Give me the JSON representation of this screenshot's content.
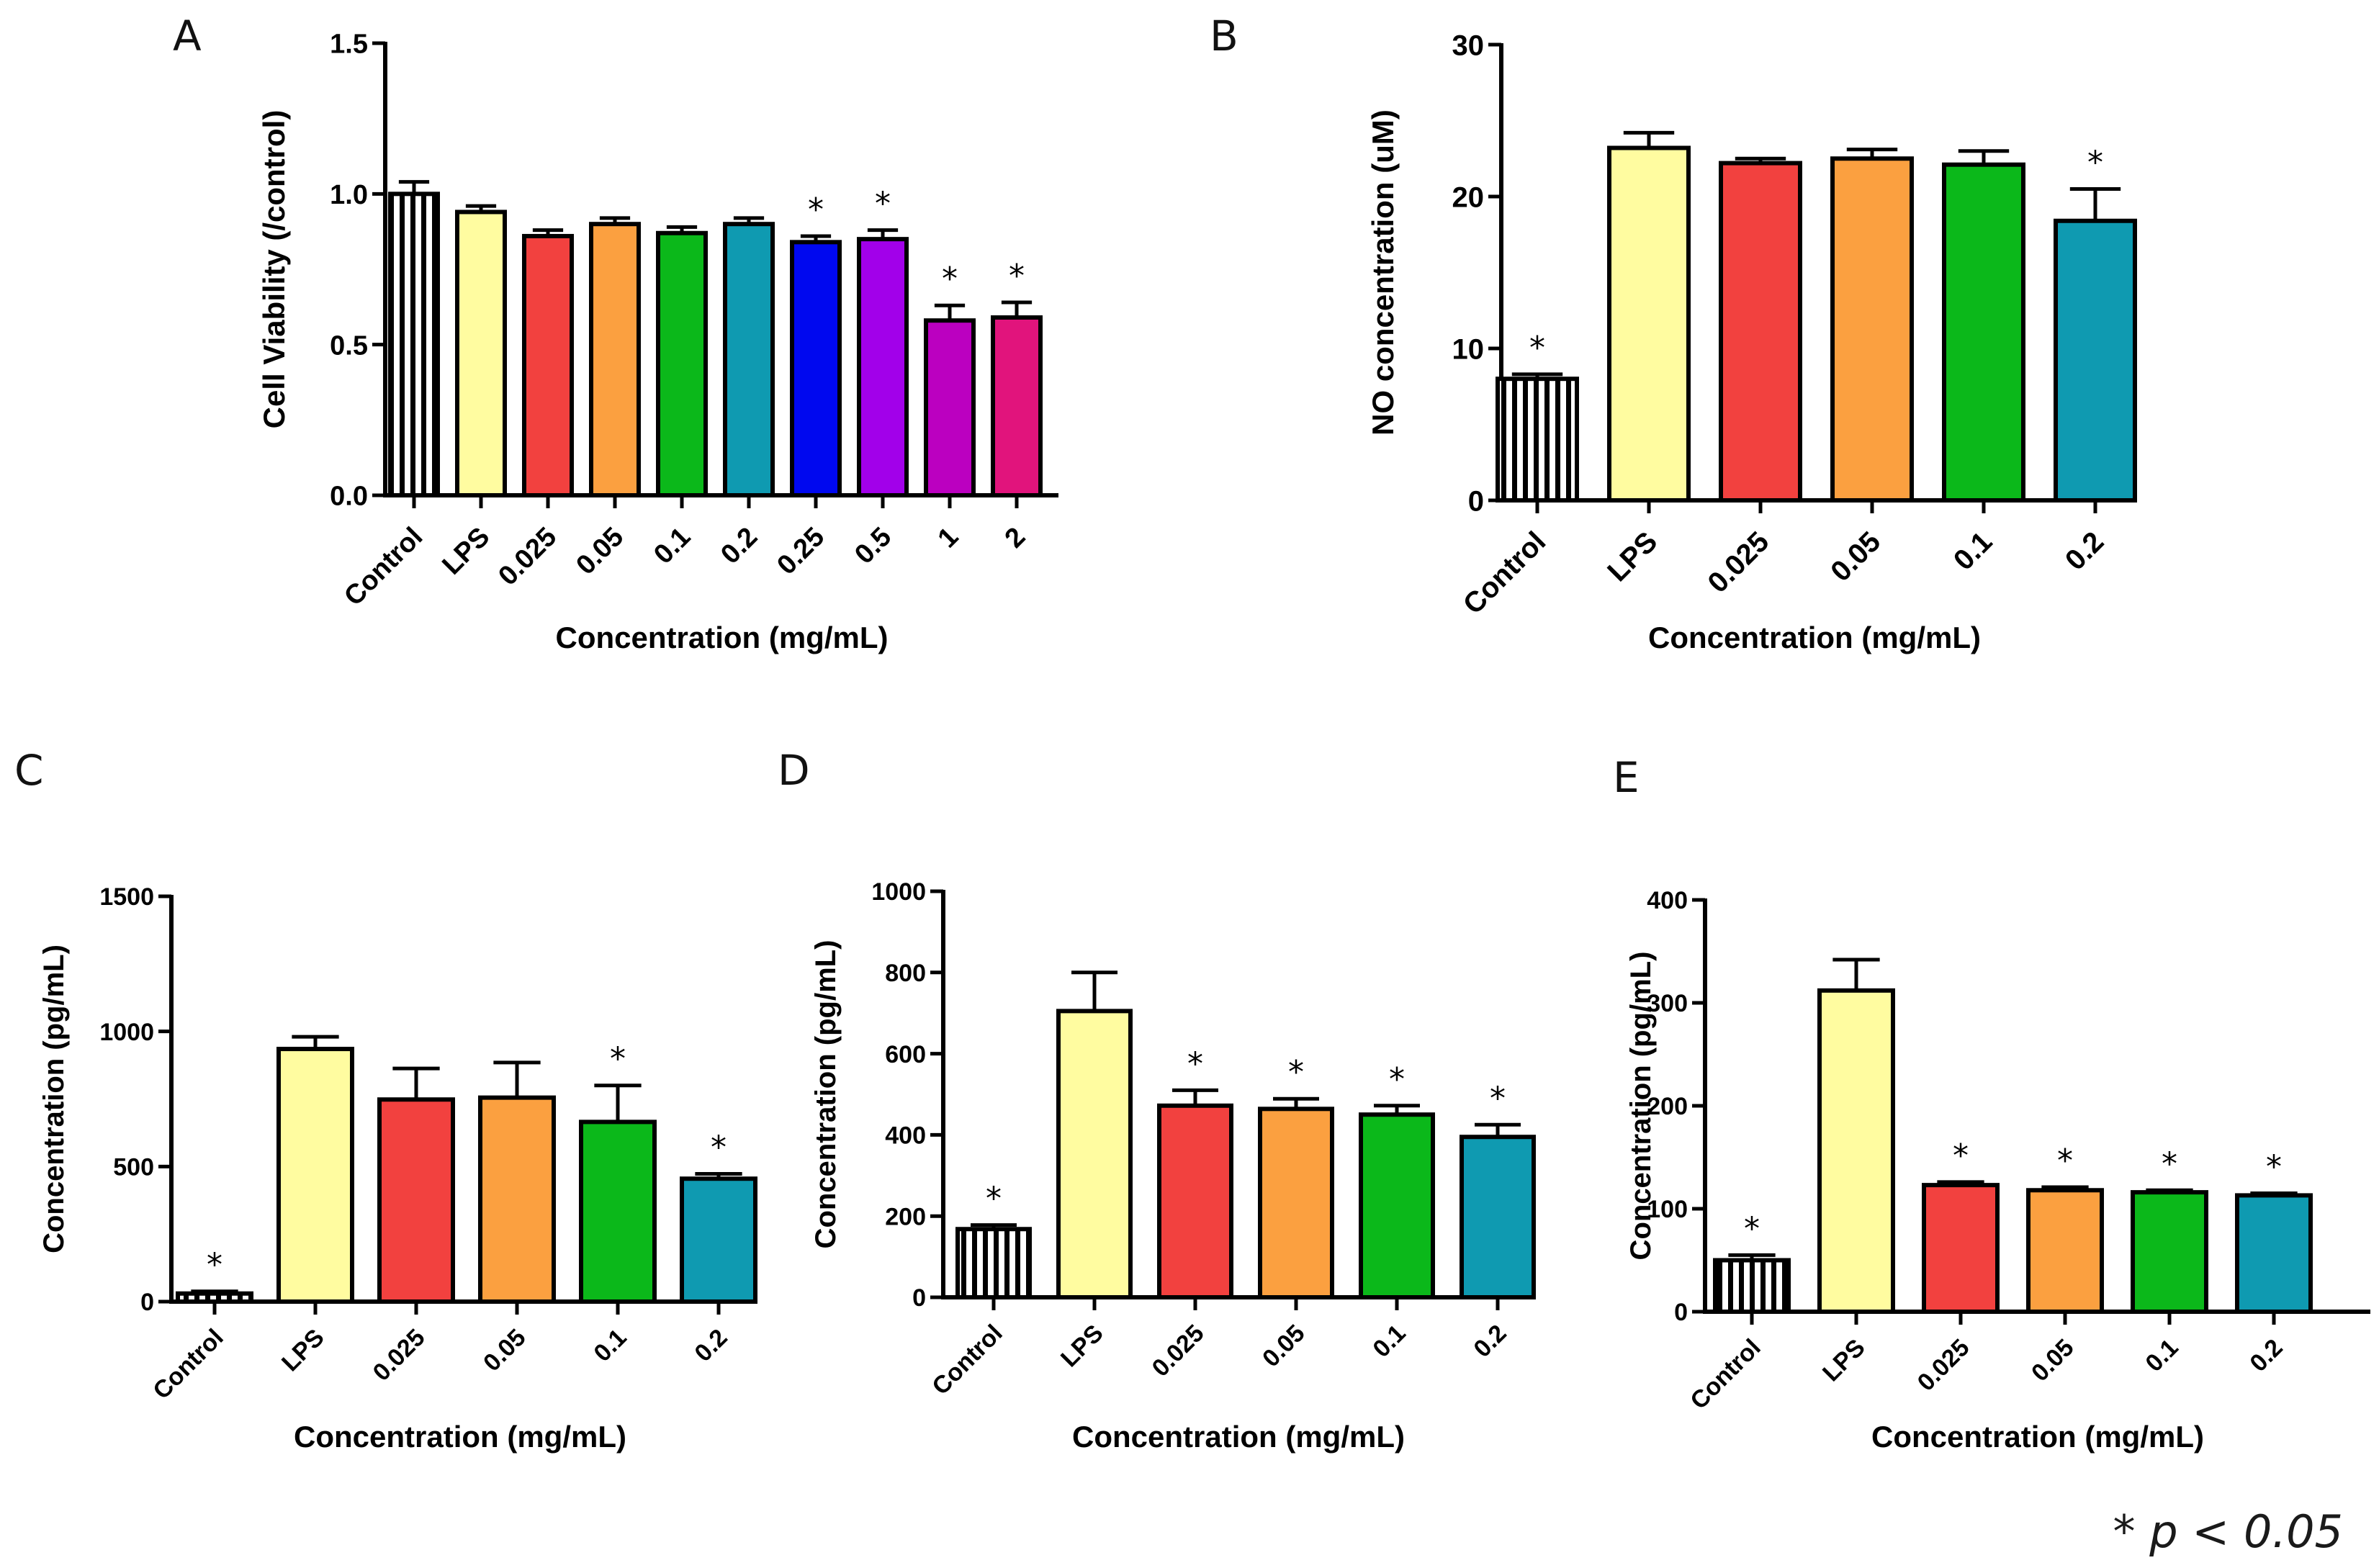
{
  "palette": {
    "yellow": "#fffca0",
    "red": "#f2413f",
    "orange": "#fba040",
    "green": "#0bb81a",
    "teal": "#0f9ab1",
    "blue": "#0008ef",
    "violet": "#a200ea",
    "purple": "#bb00c0",
    "magenta": "#e1147c"
  },
  "footnote": "* p < 0.05",
  "chart_data": [
    {
      "panel": "A",
      "type": "bar",
      "ylabel": "Cell Viability (/control)",
      "xlabel": "Concentration (mg/mL)",
      "ylim": [
        0,
        1.5
      ],
      "yticks": [
        "0.0",
        "0.5",
        "1.0",
        "1.5"
      ],
      "categories": [
        "Control",
        "LPS",
        "0.025",
        "0.05",
        "0.1",
        "0.2",
        "0.25",
        "0.5",
        "1",
        "2"
      ],
      "values": [
        1.0,
        0.94,
        0.86,
        0.9,
        0.87,
        0.9,
        0.84,
        0.85,
        0.58,
        0.59
      ],
      "errors": [
        0.04,
        0.02,
        0.02,
        0.02,
        0.02,
        0.02,
        0.02,
        0.03,
        0.05,
        0.05
      ],
      "colors": [
        "striped",
        "yellow",
        "red",
        "orange",
        "green",
        "teal",
        "blue",
        "violet",
        "purple",
        "magenta"
      ],
      "significance": [
        "",
        "",
        "",
        "",
        "",
        "",
        "*",
        "*",
        "*",
        "*"
      ]
    },
    {
      "panel": "B",
      "type": "bar",
      "ylabel": "NO concentration (uM)",
      "xlabel": "Concentration (mg/mL)",
      "ylim": [
        0,
        30
      ],
      "yticks": [
        "0",
        "10",
        "20",
        "30"
      ],
      "categories": [
        "Control",
        "LPS",
        "0.025",
        "0.05",
        "0.1",
        "0.2"
      ],
      "values": [
        8.0,
        23.2,
        22.2,
        22.5,
        22.1,
        18.4
      ],
      "errors": [
        0.3,
        1.0,
        0.3,
        0.6,
        0.9,
        2.1
      ],
      "colors": [
        "striped",
        "yellow",
        "red",
        "orange",
        "green",
        "teal"
      ],
      "significance": [
        "*",
        "",
        "",
        "",
        "",
        "*"
      ]
    },
    {
      "panel": "C",
      "type": "bar",
      "ylabel": "Concentration (pg/mL)",
      "xlabel": "Concentration (mg/mL)",
      "ylim": [
        0,
        1500
      ],
      "yticks": [
        "0",
        "500",
        "1000",
        "1500"
      ],
      "categories": [
        "Control",
        "LPS",
        "0.025",
        "0.05",
        "0.1",
        "0.2"
      ],
      "values": [
        30,
        935,
        748,
        755,
        665,
        455
      ],
      "errors": [
        8,
        45,
        115,
        130,
        135,
        18
      ],
      "colors": [
        "striped",
        "yellow",
        "red",
        "orange",
        "green",
        "teal"
      ],
      "significance": [
        "*",
        "",
        "",
        "",
        "*",
        "*"
      ]
    },
    {
      "panel": "D",
      "type": "bar",
      "ylabel": "Concentration (pg/mL)",
      "xlabel": "Concentration (mg/mL)",
      "ylim": [
        0,
        1000
      ],
      "yticks": [
        "0",
        "200",
        "400",
        "600",
        "800",
        "1000"
      ],
      "categories": [
        "Control",
        "LPS",
        "0.025",
        "0.05",
        "0.1",
        "0.2"
      ],
      "values": [
        168,
        705,
        472,
        464,
        450,
        395
      ],
      "errors": [
        10,
        95,
        38,
        25,
        22,
        30
      ],
      "colors": [
        "striped",
        "yellow",
        "red",
        "orange",
        "green",
        "teal"
      ],
      "significance": [
        "*",
        "",
        "*",
        "*",
        "*",
        "*"
      ]
    },
    {
      "panel": "E",
      "type": "bar",
      "ylabel": "Concentration (pg/mL)",
      "xlabel": "Concentration (mg/mL)",
      "ylim": [
        0,
        400
      ],
      "yticks": [
        "0",
        "100",
        "200",
        "300",
        "400"
      ],
      "categories": [
        "Control",
        "LPS",
        "0.025",
        "0.05",
        "0.1",
        "0.2"
      ],
      "values": [
        50,
        312,
        123,
        118,
        116,
        113
      ],
      "errors": [
        5,
        30,
        3,
        3,
        2,
        2
      ],
      "colors": [
        "striped",
        "yellow",
        "red",
        "orange",
        "green",
        "teal"
      ],
      "significance": [
        "*",
        "",
        "*",
        "*",
        "*",
        "*"
      ]
    }
  ]
}
